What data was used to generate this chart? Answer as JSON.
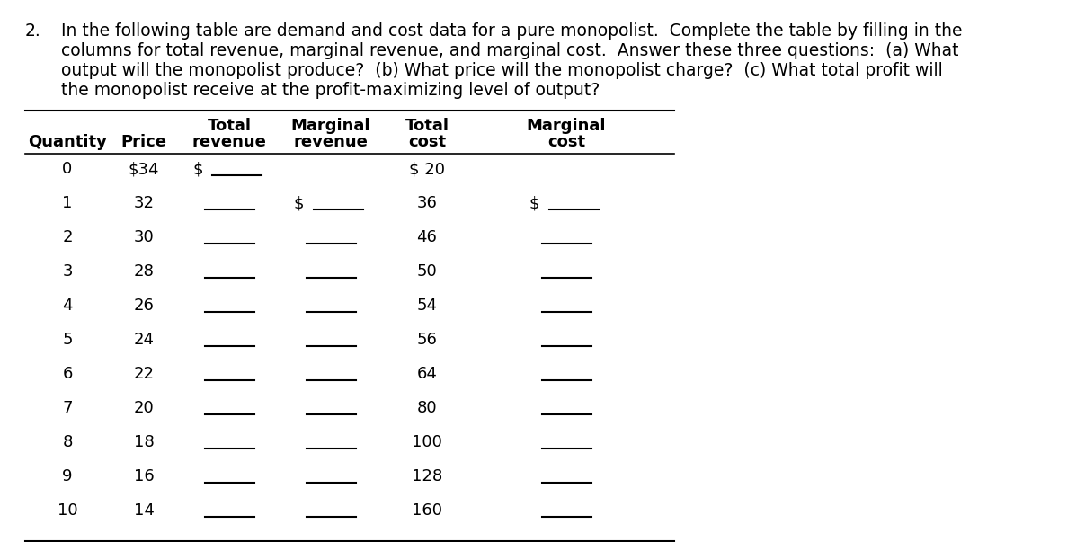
{
  "problem_number": "2.",
  "problem_lines": [
    "In the following table are demand and cost data for a pure monopolist.  Complete the table by filling in the",
    "columns for total revenue, marginal revenue, and marginal cost.  Answer these three questions:  (a) What",
    "output will the monopolist produce?  (b) What price will the monopolist charge?  (c) What total profit will",
    "the monopolist receive at the profit-maximizing level of output?"
  ],
  "col_headers_line1": [
    "Quantity",
    "Price",
    "Total",
    "Marginal",
    "Total",
    "Marginal"
  ],
  "col_headers_line2": [
    "",
    "",
    "revenue",
    "revenue",
    "cost",
    "cost"
  ],
  "quantities": [
    "0",
    "1",
    "2",
    "3",
    "4",
    "5",
    "6",
    "7",
    "8",
    "9",
    "10"
  ],
  "prices": [
    "$34",
    "32",
    "30",
    "28",
    "26",
    "24",
    "22",
    "20",
    "18",
    "16",
    "14"
  ],
  "total_cost": [
    "$ 20",
    "36",
    "46",
    "50",
    "54",
    "56",
    "64",
    "80",
    "100",
    "128",
    "160"
  ],
  "bg_color": "#ffffff",
  "text_color": "#000000",
  "font_size_text": 13.5,
  "font_size_table": 13.0
}
